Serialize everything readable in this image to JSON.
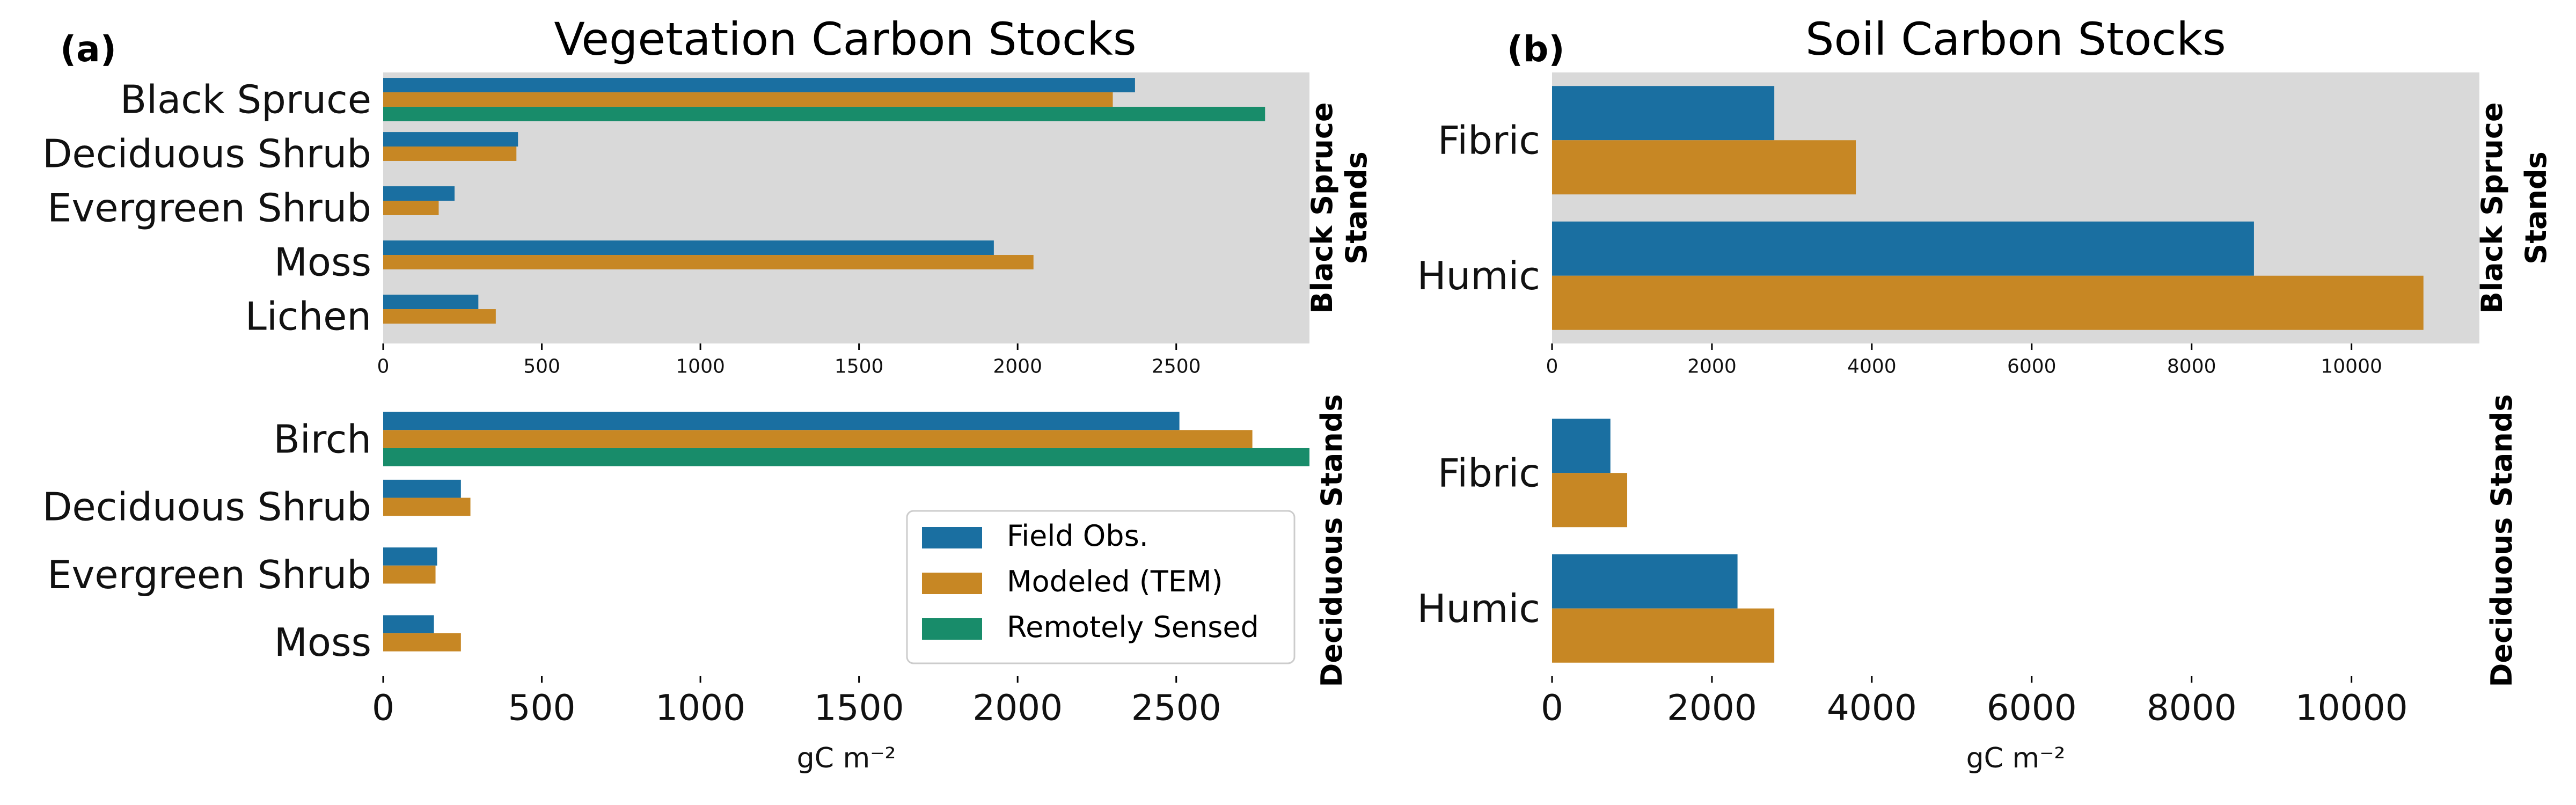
{
  "figure": {
    "panel_a": {
      "label": "(a)",
      "title": "Vegetation Carbon Stocks"
    },
    "panel_b": {
      "label": "(b)",
      "title": "Soil Carbon Stocks"
    }
  },
  "legend": {
    "entries": [
      {
        "name": "Field Obs.",
        "color": "#1a6fa1"
      },
      {
        "name": "Modeled (TEM)",
        "color": "#c78724"
      },
      {
        "name": "Remotely Sensed",
        "color": "#188c6a"
      }
    ]
  },
  "chart_data": [
    {
      "type": "bar",
      "orientation": "horizontal",
      "panel": "(a)",
      "title": "Vegetation Carbon Stocks",
      "row_label": "Black Spruce Stands",
      "categories": [
        "Black Spruce",
        "Deciduous Shrub",
        "Evergreen Shrub",
        "Moss",
        "Lichen"
      ],
      "series": [
        {
          "name": "Field Obs.",
          "values": [
            2370,
            425,
            225,
            1925,
            300
          ]
        },
        {
          "name": "Modeled (TEM)",
          "values": [
            2300,
            420,
            175,
            2050,
            355
          ]
        },
        {
          "name": "Remotely Sensed",
          "values": [
            2780,
            null,
            null,
            null,
            null
          ]
        }
      ],
      "xlim": [
        0,
        2920
      ],
      "xticks": [
        0,
        500,
        1000,
        1500,
        2000,
        2500
      ],
      "xlabel": "",
      "background": "#d9d9d9"
    },
    {
      "type": "bar",
      "orientation": "horizontal",
      "panel": "(a)",
      "row_label": "Deciduous Stands",
      "categories": [
        "Birch",
        "Deciduous Shrub",
        "Evergreen Shrub",
        "Moss"
      ],
      "series": [
        {
          "name": "Field Obs.",
          "values": [
            2510,
            245,
            170,
            160
          ]
        },
        {
          "name": "Modeled (TEM)",
          "values": [
            2740,
            275,
            165,
            245
          ]
        },
        {
          "name": "Remotely Sensed",
          "values": [
            2920,
            null,
            null,
            null
          ]
        }
      ],
      "xlim": [
        0,
        2920
      ],
      "xticks": [
        0,
        500,
        1000,
        1500,
        2000,
        2500
      ],
      "xlabel": "gC m⁻²"
    },
    {
      "type": "bar",
      "orientation": "horizontal",
      "panel": "(b)",
      "title": "Soil Carbon Stocks",
      "row_label": "Black Spruce Stands",
      "categories": [
        "Fibric",
        "Humic"
      ],
      "series": [
        {
          "name": "Field Obs.",
          "values": [
            2780,
            8780
          ]
        },
        {
          "name": "Modeled (TEM)",
          "values": [
            3800,
            10900
          ]
        }
      ],
      "xlim": [
        0,
        11600
      ],
      "xticks": [
        0,
        2000,
        4000,
        6000,
        8000,
        10000
      ],
      "xlabel": "",
      "background": "#d9d9d9"
    },
    {
      "type": "bar",
      "orientation": "horizontal",
      "panel": "(b)",
      "row_label": "Deciduous Stands",
      "categories": [
        "Fibric",
        "Humic"
      ],
      "series": [
        {
          "name": "Field Obs.",
          "values": [
            730,
            2320
          ]
        },
        {
          "name": "Modeled (TEM)",
          "values": [
            940,
            2780
          ]
        }
      ],
      "xlim": [
        0,
        11600
      ],
      "xticks": [
        0,
        2000,
        4000,
        6000,
        8000,
        10000
      ],
      "xlabel": "gC m⁻²"
    }
  ]
}
